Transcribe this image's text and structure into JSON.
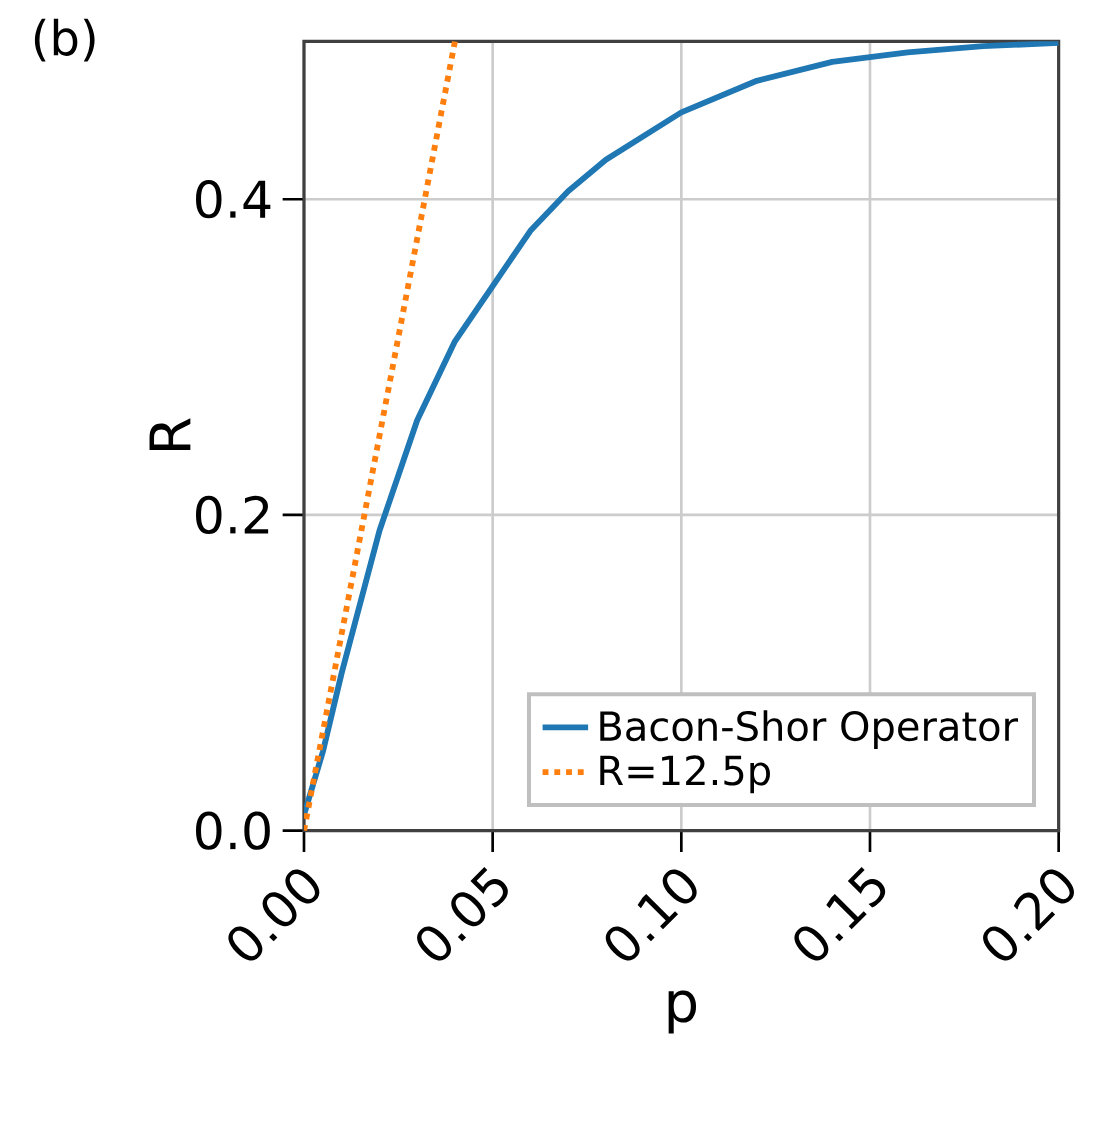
{
  "chart_data": {
    "type": "line",
    "xlabel": "p",
    "ylabel": "R",
    "annotations": [
      "(b)"
    ],
    "xlim": [
      0,
      0.2
    ],
    "ylim": [
      0,
      0.5
    ],
    "xticks": [
      {
        "value": 0,
        "label": "0.00"
      },
      {
        "value": 0.05,
        "label": "0.05"
      },
      {
        "value": 0.1,
        "label": "0.10"
      },
      {
        "value": 0.15,
        "label": "0.15"
      },
      {
        "value": 0.2,
        "label": "0.20"
      }
    ],
    "yticks": [
      {
        "value": 0,
        "label": "0.0"
      },
      {
        "value": 0.2,
        "label": "0.2"
      },
      {
        "value": 0.4,
        "label": "0.4"
      }
    ],
    "grid": true,
    "legend": "bottom right",
    "series": [
      {
        "name": "Bacon-Shor Operator",
        "color": "#1f77b4",
        "line_style": "solid",
        "x": [
          0,
          0.005,
          0.01,
          0.02,
          0.03,
          0.04,
          0.05,
          0.06,
          0.07,
          0.08,
          0.09,
          0.1,
          0.12,
          0.14,
          0.16,
          0.18,
          0.2
        ],
        "values": [
          0.01,
          0.05,
          0.1,
          0.19,
          0.26,
          0.31,
          0.345,
          0.38,
          0.405,
          0.425,
          0.44,
          0.455,
          0.475,
          0.487,
          0.493,
          0.497,
          0.499
        ]
      },
      {
        "name": "R=12.5p",
        "color": "#ff7f0e",
        "line_style": "dotted",
        "x": [
          0,
          0.04
        ],
        "values": [
          0,
          0.5
        ]
      }
    ]
  }
}
